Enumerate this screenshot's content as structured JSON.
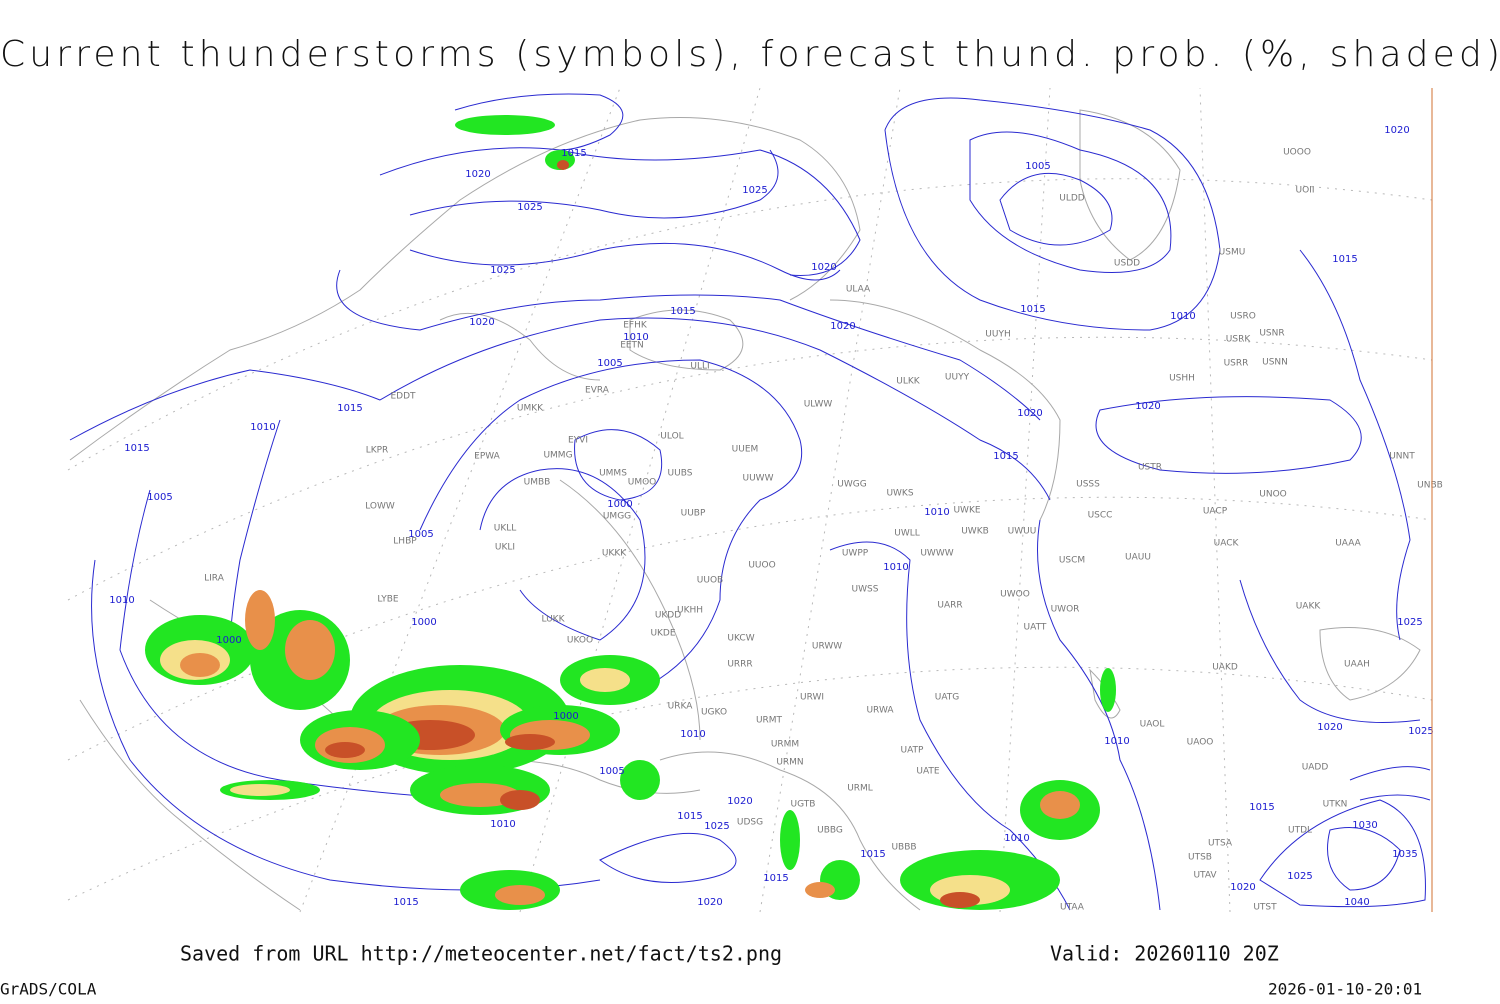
{
  "title": "Current thunderstorms (symbols), forecast thund. prob. (%, shaded)",
  "footer": {
    "saved": "Saved from URL http://meteocenter.net/fact/ts2.png",
    "valid": "Valid: 20260110 20Z",
    "credit": "GrADS/COLA",
    "timestamp": "2026-01-10-20:01"
  },
  "isobar_labels": [
    "1015",
    "1020",
    "1025",
    "1025",
    "1025",
    "1020",
    "1020",
    "1015",
    "1010",
    "1005",
    "1015",
    "1010",
    "1015",
    "1005",
    "1010",
    "1005",
    "1000",
    "1005",
    "1015",
    "1010",
    "1020",
    "1020",
    "1015",
    "1010",
    "1010",
    "1020",
    "1015",
    "1020",
    "1025",
    "1020",
    "1025",
    "1000",
    "1000",
    "1000",
    "1010",
    "1010",
    "1005",
    "1020",
    "1015",
    "1025",
    "1010",
    "1010",
    "1015",
    "1015",
    "1015",
    "1030",
    "1025",
    "1020",
    "1035",
    "1040",
    "1015",
    "1020"
  ],
  "stations": [
    "ULDD",
    "USDD",
    "USMU",
    "UOOO",
    "UOII",
    "ULAA",
    "UUYH",
    "USRO",
    "USRK",
    "USNR",
    "USRR",
    "USNN",
    "USHH",
    "ULKK",
    "UUYY",
    "ULWW",
    "EFHK",
    "EETN",
    "ULLI",
    "EVRA",
    "ULOL",
    "UMKK",
    "EYVI",
    "UMMG",
    "EPWA",
    "UMMS",
    "UMOO",
    "UUBS",
    "UUEM",
    "UUWW",
    "UWGG",
    "UWKS",
    "UWKE",
    "UWKB",
    "UWUU",
    "USSS",
    "USCC",
    "USTR",
    "UNOO",
    "UNNT",
    "UNBB",
    "UACP",
    "UACK",
    "UAAA",
    "USCM",
    "UAUU",
    "UAKK",
    "UAKD",
    "UAAH",
    "UWOO",
    "UWOR",
    "UATT",
    "UARR",
    "UWSS",
    "UWWW",
    "UWLL",
    "UWPP",
    "URWW",
    "UMBB",
    "UMGG",
    "UUBP",
    "UKLL",
    "UKLI",
    "UKKK",
    "UUOO",
    "UUOB",
    "UKHH",
    "UKDD",
    "UKDE",
    "LUKK",
    "UKOO",
    "UKCW",
    "URRR",
    "URWI",
    "URMT",
    "URMM",
    "URMN",
    "URWA",
    "UATG",
    "UATP",
    "UATE",
    "URML",
    "UAOL",
    "UAOO",
    "EDDT",
    "LKPR",
    "LOWW",
    "LHBP",
    "LYBE",
    "LIRA",
    "URKA",
    "UGKO",
    "UDSG",
    "UTAA",
    "UTSB",
    "UTAV",
    "UTSA",
    "UTST",
    "UTDL",
    "UTKN",
    "UADD",
    "UBBB",
    "UGTB",
    "UBBG"
  ]
}
